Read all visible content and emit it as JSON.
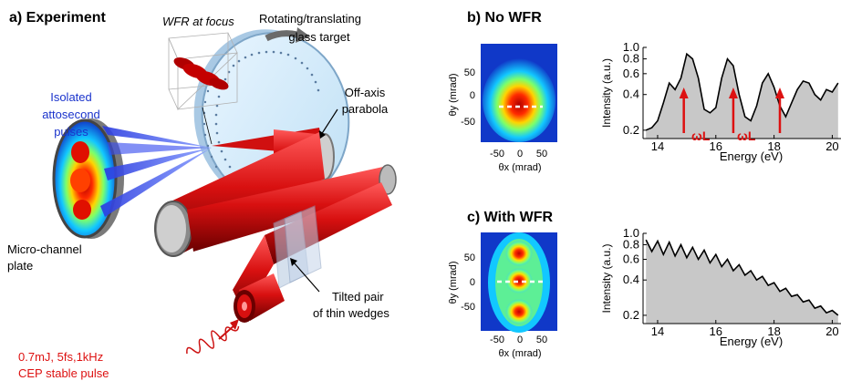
{
  "panel_a": {
    "title": "a) Experiment",
    "wfr_focus": "WFR at focus",
    "rotating_line1": "Rotating/translating",
    "rotating_line2": "glass target",
    "isolated_line1": "Isolated",
    "isolated_line2": "attosecond",
    "isolated_line3": "pulses",
    "offaxis_line1": "Off-axis",
    "offaxis_line2": "parabola",
    "mcp_line1": "Micro-channel",
    "mcp_line2": "plate",
    "wedges_line1": "Tilted pair",
    "wedges_line2": "of thin wedges",
    "laser_line1": "0.7mJ, 5fs,1kHz",
    "laser_line2": "CEP stable pulse"
  },
  "panel_b": {
    "title": "b) No WFR",
    "map_y_label": "θy (mrad)",
    "map_x_label": "θx (mrad)",
    "map_y_ticks": [
      "50",
      "0",
      "-50"
    ],
    "map_x_ticks": [
      "-50",
      "0",
      "50"
    ],
    "omega_label_1": "ωL",
    "omega_label_2": "ωL"
  },
  "panel_c": {
    "title": "c) With WFR",
    "map_y_label": "θy (mrad)",
    "map_x_label": "θx (mrad)",
    "map_y_ticks": [
      "50",
      "0",
      "-50"
    ],
    "map_x_ticks": [
      "-50",
      "0",
      "50"
    ]
  },
  "colors": {
    "red_beam": "#cc1010",
    "blue_beam": "#1a33d9",
    "spectrum_fill": "#c8c8c8",
    "laser_text": "#dd1111",
    "isolated_text": "#1a33cc"
  },
  "chart_data": [
    {
      "type": "area",
      "id": "spectrum-no-wfr",
      "ylabel": "Intensity (a.u.)",
      "xlabel": "Energy (eV)",
      "y_scale": "log",
      "ylim": [
        0.17,
        1.0
      ],
      "xlim": [
        13.5,
        20.3
      ],
      "y_ticks": [
        "1.0",
        "0.8",
        "0.6",
        "0.4",
        "0.2"
      ],
      "x_ticks": [
        "14",
        "16",
        "18",
        "20"
      ],
      "x": [
        13.6,
        13.8,
        14.0,
        14.2,
        14.4,
        14.6,
        14.8,
        15.0,
        15.2,
        15.4,
        15.6,
        15.8,
        16.0,
        16.2,
        16.4,
        16.6,
        16.8,
        17.0,
        17.2,
        17.4,
        17.6,
        17.8,
        18.0,
        18.2,
        18.4,
        18.6,
        18.8,
        19.0,
        19.2,
        19.4,
        19.6,
        19.8,
        20.0,
        20.2
      ],
      "y": [
        0.2,
        0.21,
        0.24,
        0.34,
        0.5,
        0.44,
        0.55,
        0.88,
        0.8,
        0.55,
        0.3,
        0.28,
        0.31,
        0.55,
        0.8,
        0.7,
        0.4,
        0.26,
        0.24,
        0.32,
        0.5,
        0.6,
        0.46,
        0.32,
        0.26,
        0.34,
        0.44,
        0.52,
        0.5,
        0.4,
        0.36,
        0.44,
        0.42,
        0.5
      ],
      "arrows_at_x": [
        14.9,
        16.6,
        18.2
      ],
      "annotations": [
        "ωL",
        "ωL"
      ]
    },
    {
      "type": "area",
      "id": "spectrum-with-wfr",
      "ylabel": "Intensity (a.u.)",
      "xlabel": "Energy (eV)",
      "y_scale": "log",
      "ylim": [
        0.17,
        1.0
      ],
      "xlim": [
        13.5,
        20.3
      ],
      "y_ticks": [
        "1.0",
        "0.8",
        "0.6",
        "0.4",
        "0.2"
      ],
      "x_ticks": [
        "14",
        "16",
        "18",
        "20"
      ],
      "x": [
        13.6,
        13.8,
        14.0,
        14.2,
        14.4,
        14.6,
        14.8,
        15.0,
        15.2,
        15.4,
        15.6,
        15.8,
        16.0,
        16.2,
        16.4,
        16.6,
        16.8,
        17.0,
        17.2,
        17.4,
        17.6,
        17.8,
        18.0,
        18.2,
        18.4,
        18.6,
        18.8,
        19.0,
        19.2,
        19.4,
        19.6,
        19.8,
        20.0,
        20.2
      ],
      "y": [
        0.88,
        0.7,
        0.86,
        0.66,
        0.84,
        0.64,
        0.8,
        0.62,
        0.76,
        0.6,
        0.72,
        0.56,
        0.66,
        0.52,
        0.6,
        0.48,
        0.54,
        0.44,
        0.48,
        0.4,
        0.43,
        0.36,
        0.38,
        0.32,
        0.34,
        0.29,
        0.3,
        0.26,
        0.27,
        0.23,
        0.24,
        0.21,
        0.22,
        0.2
      ]
    }
  ]
}
